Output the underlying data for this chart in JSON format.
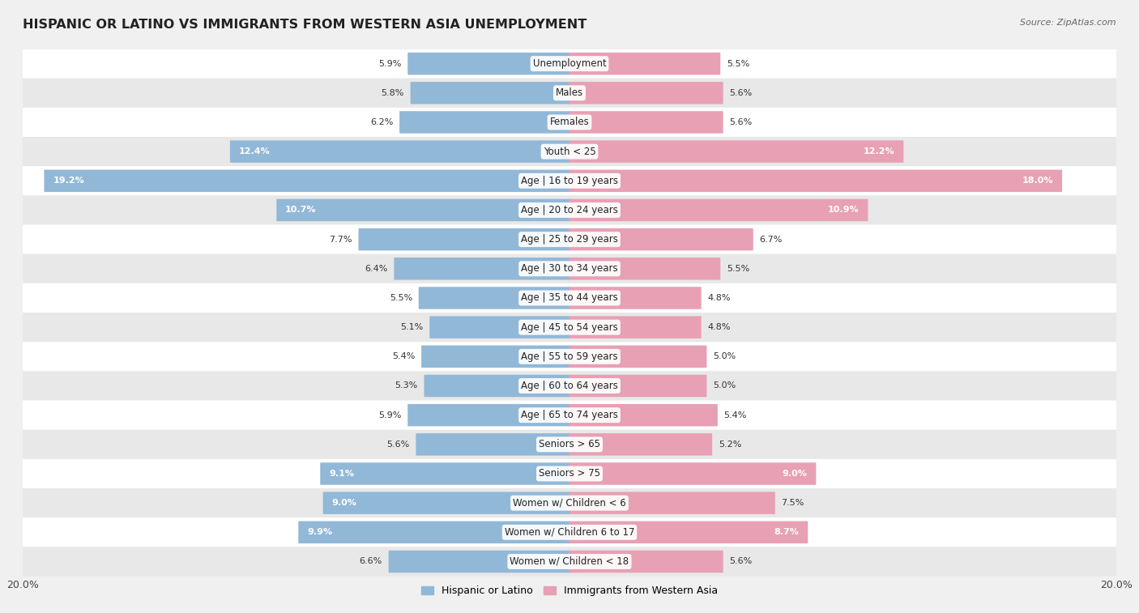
{
  "title": "HISPANIC OR LATINO VS IMMIGRANTS FROM WESTERN ASIA UNEMPLOYMENT",
  "source": "Source: ZipAtlas.com",
  "categories": [
    "Unemployment",
    "Males",
    "Females",
    "Youth < 25",
    "Age | 16 to 19 years",
    "Age | 20 to 24 years",
    "Age | 25 to 29 years",
    "Age | 30 to 34 years",
    "Age | 35 to 44 years",
    "Age | 45 to 54 years",
    "Age | 55 to 59 years",
    "Age | 60 to 64 years",
    "Age | 65 to 74 years",
    "Seniors > 65",
    "Seniors > 75",
    "Women w/ Children < 6",
    "Women w/ Children 6 to 17",
    "Women w/ Children < 18"
  ],
  "left_values": [
    5.9,
    5.8,
    6.2,
    12.4,
    19.2,
    10.7,
    7.7,
    6.4,
    5.5,
    5.1,
    5.4,
    5.3,
    5.9,
    5.6,
    9.1,
    9.0,
    9.9,
    6.6
  ],
  "right_values": [
    5.5,
    5.6,
    5.6,
    12.2,
    18.0,
    10.9,
    6.7,
    5.5,
    4.8,
    4.8,
    5.0,
    5.0,
    5.4,
    5.2,
    9.0,
    7.5,
    8.7,
    5.6
  ],
  "left_color": "#92b8d8",
  "right_color": "#e8a0b4",
  "left_label": "Hispanic or Latino",
  "right_label": "Immigrants from Western Asia",
  "max_val": 20.0,
  "bg_color": "#f0f0f0",
  "row_color_even": "#ffffff",
  "row_color_odd": "#e8e8e8",
  "title_fontsize": 11.5,
  "label_fontsize": 8.5,
  "value_fontsize": 8.0,
  "white_text_threshold": 8.0
}
